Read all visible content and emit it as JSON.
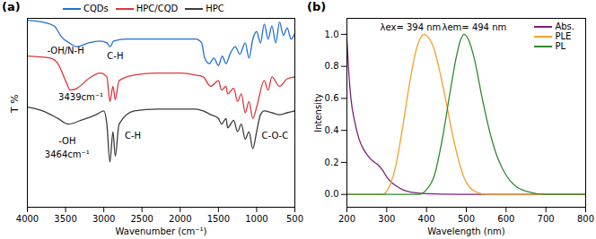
{
  "chart_data": [
    {
      "type": "line",
      "title": "(a)",
      "x_label": "Wavenumber (cm⁻¹)",
      "y_label": "T %",
      "xlim": [
        4000,
        500
      ],
      "xticks": [
        4000,
        3500,
        3000,
        2500,
        2000,
        1500,
        1000,
        500
      ],
      "ylim": [
        0,
        100
      ],
      "tick_labels": "x",
      "legend": "top",
      "series": [
        {
          "name": "CQDs",
          "color": "#1f6fd1",
          "x": [
            4000,
            3800,
            3650,
            3550,
            3450,
            3350,
            3200,
            3050,
            2960,
            2920,
            2870,
            2700,
            2400,
            2100,
            1800,
            1720,
            1680,
            1620,
            1560,
            1500,
            1450,
            1400,
            1350,
            1280,
            1220,
            1150,
            1100,
            1050,
            1000,
            950,
            900,
            850,
            800,
            750,
            700,
            650,
            600,
            550,
            500
          ],
          "values": [
            99,
            98,
            96,
            90,
            87,
            85,
            87,
            88,
            87,
            85,
            88,
            89,
            89,
            89,
            89,
            87,
            79,
            76,
            79,
            75,
            80,
            76,
            81,
            85,
            81,
            87,
            79,
            89,
            93,
            87,
            97,
            89,
            96,
            87,
            98,
            91,
            95,
            89,
            92
          ]
        },
        {
          "name": "HPC/CQD",
          "color": "#d9383a",
          "x": [
            4000,
            3700,
            3600,
            3500,
            3439,
            3350,
            3200,
            3050,
            2960,
            2920,
            2880,
            2850,
            2800,
            2600,
            2300,
            2000,
            1800,
            1700,
            1600,
            1500,
            1460,
            1400,
            1380,
            1300,
            1250,
            1200,
            1150,
            1100,
            1050,
            1000,
            900,
            850,
            800,
            700,
            600,
            500
          ],
          "values": [
            80,
            79,
            76,
            67,
            62,
            63,
            68,
            71,
            69,
            56,
            64,
            57,
            67,
            70,
            71,
            71,
            70,
            69,
            64,
            67,
            62,
            64,
            60,
            63,
            56,
            60,
            50,
            56,
            47,
            53,
            67,
            62,
            69,
            64,
            68,
            69
          ]
        },
        {
          "name": "HPC",
          "color": "#3c3c3c",
          "x": [
            4000,
            3800,
            3600,
            3464,
            3300,
            3100,
            3000,
            2960,
            2920,
            2880,
            2850,
            2800,
            2600,
            2300,
            2000,
            1800,
            1700,
            1600,
            1500,
            1460,
            1400,
            1380,
            1300,
            1250,
            1200,
            1150,
            1100,
            1050,
            1000,
            950,
            900,
            800,
            700,
            600,
            500
          ],
          "values": [
            53,
            51,
            47,
            44,
            46,
            49,
            51,
            44,
            24,
            40,
            27,
            44,
            51,
            52,
            52,
            52,
            51,
            49,
            47,
            44,
            47,
            42,
            46,
            40,
            44,
            36,
            40,
            31,
            40,
            49,
            51,
            50,
            49,
            50,
            51
          ]
        }
      ],
      "annotations": [
        {
          "text": "-OH/N-H",
          "x": 3500,
          "y": 83
        },
        {
          "text": "C-H",
          "x": 2850,
          "y": 80
        },
        {
          "text": "3439cm⁻¹",
          "x": 3300,
          "y": 58
        },
        {
          "text": "-OH",
          "x": 3480,
          "y": 35
        },
        {
          "text": "3464cm⁻¹",
          "x": 3480,
          "y": 28
        },
        {
          "text": "C-H",
          "x": 2620,
          "y": 38
        },
        {
          "text": "C-O-C",
          "x": 760,
          "y": 38
        }
      ]
    },
    {
      "type": "line",
      "title": "(b)",
      "x_label": "Wavelength (nm)",
      "y_label": "Intensity",
      "xlim": [
        200,
        800
      ],
      "xticks": [
        200,
        300,
        400,
        500,
        600,
        700,
        800
      ],
      "ylim": [
        -0.08,
        1.1
      ],
      "yticks": [
        {
          "value": 0,
          "label": "0.0"
        },
        0.2,
        0.4,
        0.6,
        0.8,
        {
          "value": 1,
          "label": "1.0"
        }
      ],
      "legend": "top-right",
      "series": [
        {
          "name": "Abs.",
          "color": "#7b1f7e",
          "x": [
            200,
            205,
            210,
            220,
            230,
            240,
            250,
            260,
            270,
            280,
            290,
            300,
            310,
            320,
            340,
            360,
            400,
            500,
            600,
            700,
            800
          ],
          "values": [
            0.97,
            0.75,
            0.6,
            0.45,
            0.35,
            0.29,
            0.25,
            0.22,
            0.2,
            0.18,
            0.15,
            0.11,
            0.08,
            0.06,
            0.03,
            0.015,
            0.005,
            0,
            0,
            0,
            0
          ]
        },
        {
          "name": "PLE",
          "color": "#f5a02a",
          "x": [
            200,
            290,
            300,
            310,
            320,
            330,
            340,
            350,
            360,
            370,
            380,
            394,
            405,
            420,
            435,
            450,
            465,
            480,
            495,
            510,
            530,
            550,
            800
          ],
          "values": [
            0,
            0,
            0.02,
            0.07,
            0.15,
            0.27,
            0.42,
            0.58,
            0.73,
            0.86,
            0.95,
            1.0,
            0.98,
            0.9,
            0.75,
            0.57,
            0.38,
            0.22,
            0.1,
            0.04,
            0.01,
            0,
            0
          ]
        },
        {
          "name": "PL",
          "color": "#2e8b2e",
          "x": [
            200,
            380,
            400,
            420,
            440,
            460,
            475,
            485,
            494,
            505,
            520,
            540,
            560,
            580,
            600,
            620,
            650,
            700,
            800
          ],
          "values": [
            0,
            0,
            0.03,
            0.12,
            0.35,
            0.65,
            0.86,
            0.96,
            1.0,
            0.97,
            0.85,
            0.6,
            0.38,
            0.22,
            0.12,
            0.06,
            0.02,
            0,
            0
          ]
        }
      ],
      "annotations": [
        {
          "text": "λex= 394 nm",
          "x": 360,
          "y": 1.045
        },
        {
          "text": "λem= 494 nm",
          "x": 520,
          "y": 1.045
        }
      ]
    }
  ]
}
